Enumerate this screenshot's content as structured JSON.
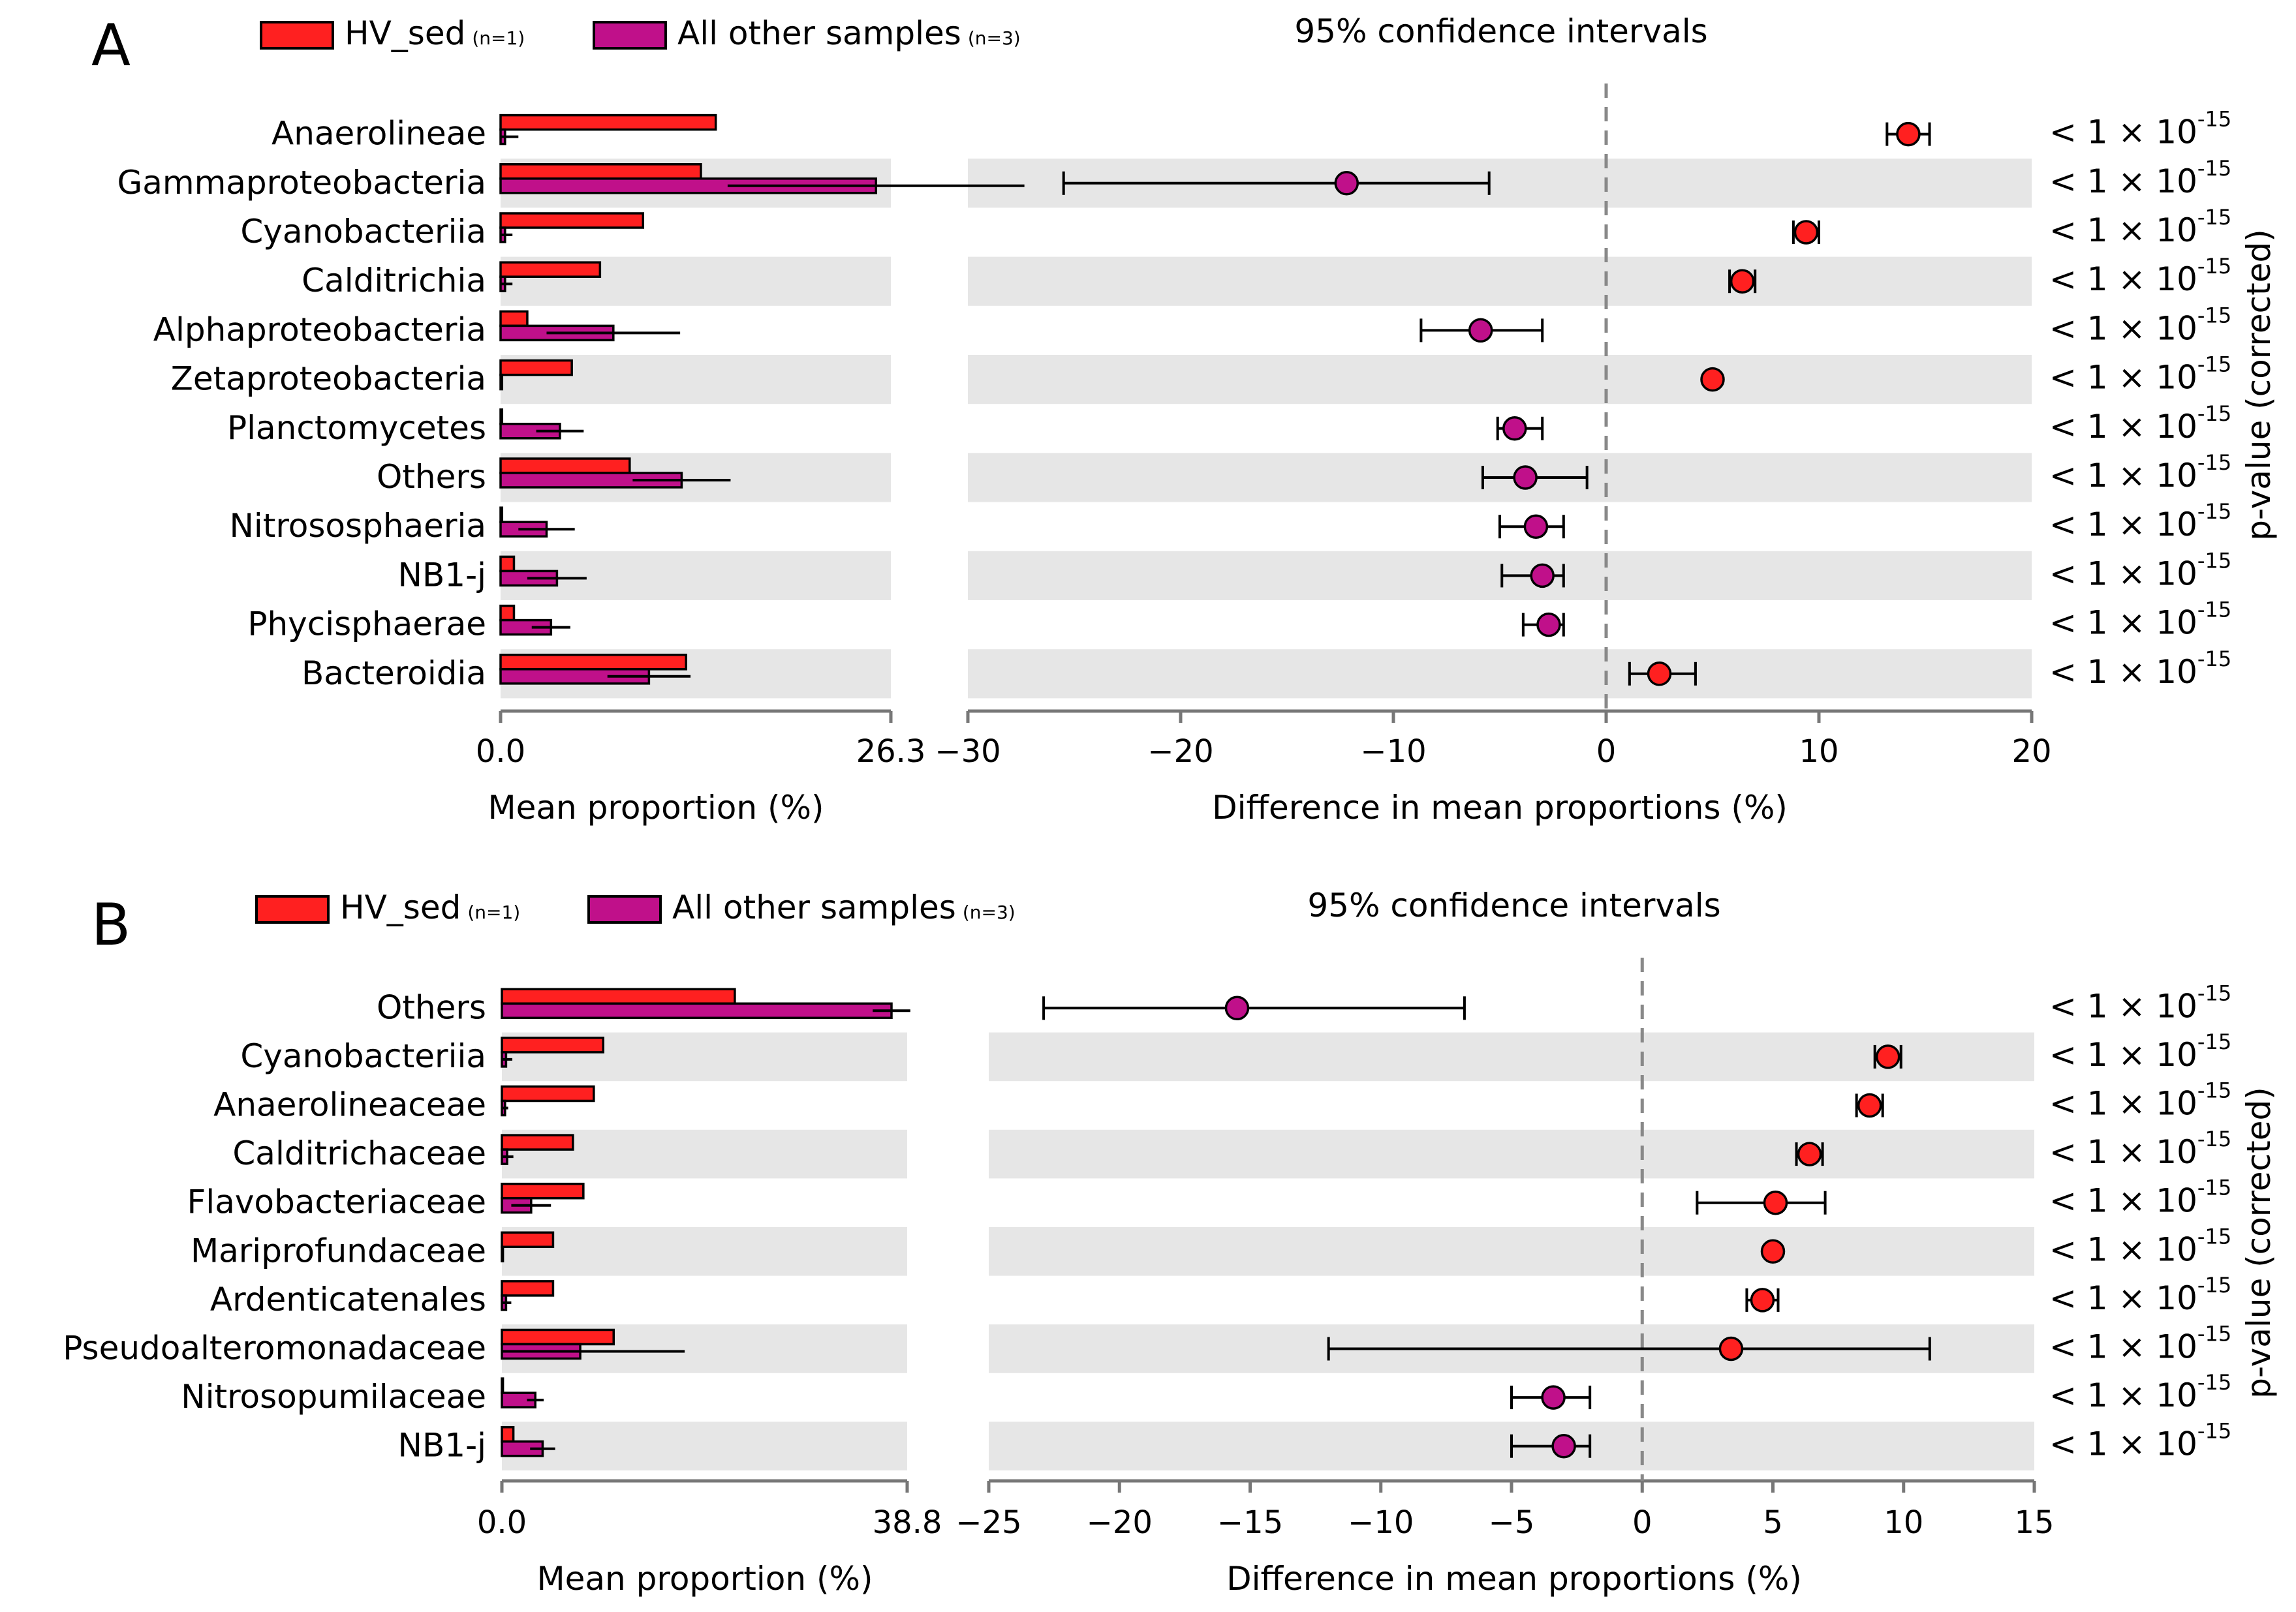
{
  "chart_data": [
    {
      "panel": "A",
      "type": "bar",
      "legend": {
        "hv": "HV_sed",
        "hv_n": "(n=1)",
        "other": "All other samples",
        "other_n": "(n=3)"
      },
      "ci_title": "95% confidence intervals",
      "xlabel_left": "Mean proportion (%)",
      "xlabel_right": "Difference in mean proportions (%)",
      "ylabel_right": "p-value (corrected)",
      "left_xlim": [
        0,
        26.3
      ],
      "left_ticks": [
        "0.0",
        "26.3"
      ],
      "right_xlim": [
        -30,
        20
      ],
      "right_ticks": [
        -30,
        -20,
        -10,
        0,
        10,
        20
      ],
      "categories": [
        "Anaerolineae",
        "Gammaproteobacteria",
        "Cyanobacteriia",
        "Calditrichia",
        "Alphaproteobacteria",
        "Zetaproteobacteria",
        "Planctomycetes",
        "Others",
        "Nitrososphaeria",
        "NB1-j",
        "Phycisphaerae",
        "Bacteroidia"
      ],
      "series": [
        {
          "name": "HV_sed",
          "values": [
            14.5,
            13.5,
            9.6,
            6.7,
            1.8,
            4.8,
            0.1,
            8.7,
            0.1,
            0.9,
            0.9,
            12.5
          ],
          "err": [
            0,
            0,
            0,
            0,
            0,
            0,
            0,
            0,
            0,
            0,
            0,
            0
          ]
        },
        {
          "name": "All other samples",
          "values": [
            0.3,
            25.3,
            0.3,
            0.3,
            7.6,
            0.1,
            4.0,
            12.2,
            3.1,
            3.8,
            3.4,
            10.0
          ],
          "err": [
            0.9,
            10.0,
            0.5,
            0.5,
            4.5,
            0,
            1.6,
            3.3,
            1.9,
            2.0,
            1.3,
            2.8
          ]
        }
      ],
      "diff": [
        14.2,
        -12.2,
        9.4,
        6.4,
        -5.9,
        5.0,
        -4.3,
        -3.8,
        -3.3,
        -3.0,
        -2.7,
        2.5
      ],
      "ci_low": [
        13.2,
        -25.5,
        8.8,
        5.8,
        -8.7,
        5.0,
        -5.1,
        -5.8,
        -5.0,
        -4.9,
        -3.9,
        1.1
      ],
      "ci_high": [
        15.2,
        -5.5,
        10.0,
        7.0,
        -3.0,
        5.0,
        -3.0,
        -0.9,
        -2.0,
        -2.0,
        -2.0,
        4.2
      ],
      "p_values": [
        "< 1 × 10",
        "< 1 × 10",
        "< 1 × 10",
        "< 1 × 10",
        "< 1 × 10",
        "< 1 × 10",
        "< 1 × 10",
        "< 1 × 10",
        "< 1 × 10",
        "< 1 × 10",
        "< 1 × 10",
        "< 1 × 10"
      ],
      "p_exp": "-15"
    },
    {
      "panel": "B",
      "type": "bar",
      "legend": {
        "hv": "HV_sed",
        "hv_n": "(n=1)",
        "other": "All other samples",
        "other_n": "(n=3)"
      },
      "ci_title": "95% confidence intervals",
      "xlabel_left": "Mean proportion (%)",
      "xlabel_right": "Difference in mean proportions (%)",
      "ylabel_right": "p-value (corrected)",
      "left_xlim": [
        0,
        38.8
      ],
      "left_ticks": [
        "0.0",
        "38.8"
      ],
      "right_xlim": [
        -25,
        15
      ],
      "right_ticks": [
        -25,
        -20,
        -15,
        -10,
        -5,
        0,
        5,
        10,
        15
      ],
      "categories": [
        "Others",
        "Cyanobacteriia",
        "Anaerolineaceae",
        "Calditrichaceae",
        "Flavobacteriaceae",
        "Mariprofundaceae",
        "Ardenticatenales",
        "Pseudoalteromonadaceae",
        "Nitrosopumilaceae",
        "NB1-j"
      ],
      "series": [
        {
          "name": "HV_sed",
          "values": [
            22.3,
            9.7,
            8.8,
            6.8,
            7.8,
            4.9,
            4.9,
            10.7,
            0.1,
            1.1
          ],
          "err": [
            0,
            0,
            0,
            0,
            0,
            0,
            0,
            0,
            0,
            0
          ]
        },
        {
          "name": "All other samples",
          "values": [
            37.3,
            0.4,
            0.3,
            0.5,
            2.8,
            0.1,
            0.4,
            7.5,
            3.2,
            3.9
          ],
          "err": [
            1.8,
            0.6,
            0.3,
            0.6,
            1.9,
            0,
            0.5,
            10.0,
            0.8,
            1.2
          ]
        }
      ],
      "diff": [
        -15.5,
        9.4,
        8.7,
        6.4,
        5.1,
        5.0,
        4.6,
        3.4,
        -3.4,
        -3.0
      ],
      "ci_low": [
        -22.9,
        8.9,
        8.2,
        5.9,
        2.1,
        5.0,
        4.0,
        -12.0,
        -5.0,
        -5.0
      ],
      "ci_high": [
        -6.8,
        9.9,
        9.2,
        6.9,
        7.0,
        5.0,
        5.2,
        11.0,
        -2.0,
        -2.0
      ],
      "p_values": [
        "< 1 × 10",
        "< 1 × 10",
        "< 1 × 10",
        "< 1 × 10",
        "< 1 × 10",
        "< 1 × 10",
        "< 1 × 10",
        "< 1 × 10",
        "< 1 × 10",
        "< 1 × 10"
      ],
      "p_exp": "-15"
    }
  ],
  "panel_labels": [
    "A",
    "B"
  ],
  "colors": {
    "hv": "#ff2020",
    "other": "#c0108a",
    "band": "#e6e6e6",
    "dash": "#888888"
  }
}
